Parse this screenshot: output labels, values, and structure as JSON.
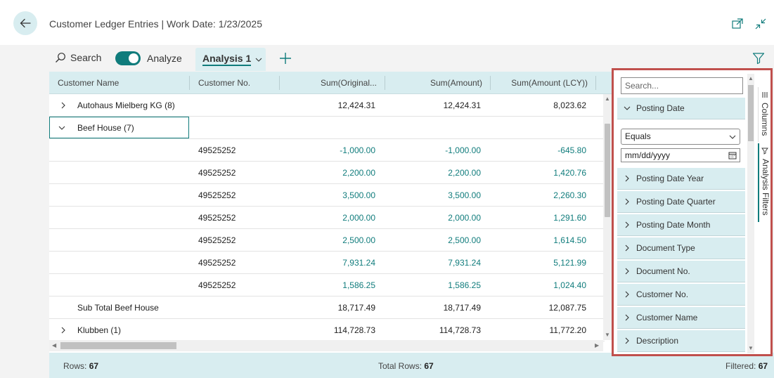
{
  "header": {
    "title": "Customer Ledger Entries | Work Date: 1/23/2025"
  },
  "toolbar": {
    "search_label": "Search",
    "analyze_label": "Analyze",
    "analyze_on": true,
    "tab_label": "Analysis 1"
  },
  "grid": {
    "columns": [
      "Customer Name",
      "Customer No.",
      "Sum(Original...",
      "Sum(Amount)",
      "Sum(Amount (LCY))"
    ],
    "rows": [
      {
        "name": "Autohaus Mielberg KG (8)",
        "no": "",
        "orig": "12,424.31",
        "amount": "12,424.31",
        "lcy": "8,023.62"
      },
      {
        "name": "Beef House (7)",
        "no": "",
        "orig": "",
        "amount": "",
        "lcy": ""
      },
      {
        "name": "",
        "no": "49525252",
        "orig": "-1,000.00",
        "amount": "-1,000.00",
        "lcy": "-645.80"
      },
      {
        "name": "",
        "no": "49525252",
        "orig": "2,200.00",
        "amount": "2,200.00",
        "lcy": "1,420.76"
      },
      {
        "name": "",
        "no": "49525252",
        "orig": "3,500.00",
        "amount": "3,500.00",
        "lcy": "2,260.30"
      },
      {
        "name": "",
        "no": "49525252",
        "orig": "2,000.00",
        "amount": "2,000.00",
        "lcy": "1,291.60"
      },
      {
        "name": "",
        "no": "49525252",
        "orig": "2,500.00",
        "amount": "2,500.00",
        "lcy": "1,614.50"
      },
      {
        "name": "",
        "no": "49525252",
        "orig": "7,931.24",
        "amount": "7,931.24",
        "lcy": "5,121.99"
      },
      {
        "name": "",
        "no": "49525252",
        "orig": "1,586.25",
        "amount": "1,586.25",
        "lcy": "1,024.40"
      },
      {
        "name": "Sub Total Beef House",
        "no": "",
        "orig": "18,717.49",
        "amount": "18,717.49",
        "lcy": "12,087.75"
      },
      {
        "name": "Klubben (1)",
        "no": "",
        "orig": "114,728.73",
        "amount": "114,728.73",
        "lcy": "11,772.20"
      }
    ]
  },
  "footer": {
    "rows_label": "Rows:",
    "rows_value": "67",
    "total_label": "Total Rows:",
    "total_value": "67",
    "filtered_label": "Filtered:",
    "filtered_value": "67"
  },
  "filter_panel": {
    "search_placeholder": "Search...",
    "expanded_item": "Posting Date",
    "operator": "Equals",
    "date_placeholder": "mm/dd/yyyy",
    "items": [
      "Posting Date Year",
      "Posting Date Quarter",
      "Posting Date Month",
      "Document Type",
      "Document No.",
      "Customer No.",
      "Customer Name",
      "Description"
    ],
    "side_tabs": [
      "Columns",
      "Analysis Filters"
    ]
  },
  "colors": {
    "accent": "#107c7c",
    "header_bg": "#d8edf0",
    "highlight_border": "#c0504d"
  }
}
